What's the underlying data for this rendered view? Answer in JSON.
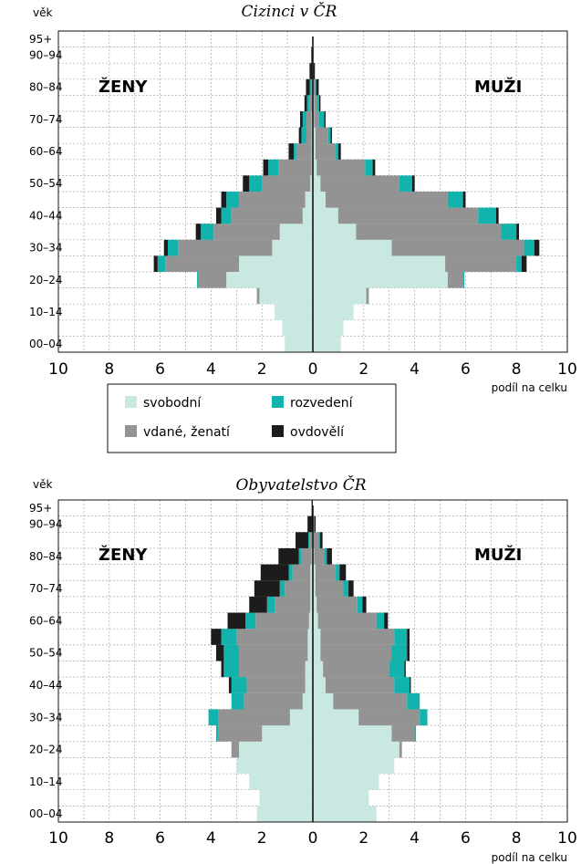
{
  "colors": {
    "svobodni": "#c9e8e2",
    "vdani": "#939393",
    "rozvedeni": "#12b3ac",
    "ovdoveli": "#1c1c1c",
    "grid": "#a6a6a6",
    "axis": "#111111"
  },
  "legend": {
    "svobodni": "svobodní",
    "vdani": "vdané, ženatí",
    "rozvedeni": "rozvedení",
    "ovdoveli": "ovdovělí"
  },
  "chart_data": [
    {
      "type": "bar",
      "orientation": "horizontal-pyramid",
      "stacked": true,
      "title": "Cizinci v ČR",
      "ylabel": "věk",
      "xlabel": "podíl na celku",
      "left_label": "ŽENY",
      "right_label": "MUŽI",
      "xlim": [
        -10,
        10
      ],
      "x_ticks": [
        "10",
        "8",
        "6",
        "4",
        "2",
        "0",
        "2",
        "4",
        "6",
        "8",
        "10"
      ],
      "y_tick_labels": [
        "00–04",
        "10–14",
        "20–24",
        "30–34",
        "40–44",
        "50–54",
        "60–64",
        "70–74",
        "80–84",
        "90–94",
        "95+"
      ],
      "grid": true,
      "categories": [
        "00–04",
        "05–09",
        "10–14",
        "15–19",
        "20–24",
        "25–29",
        "30–34",
        "35–39",
        "40–44",
        "45–49",
        "50–54",
        "55–59",
        "60–64",
        "65–69",
        "70–74",
        "75–79",
        "80–84",
        "85–89",
        "90–94",
        "95+"
      ],
      "series": [
        {
          "key": "svobodni",
          "name": "svobodní",
          "zeny": [
            1.1,
            1.2,
            1.5,
            2.1,
            3.4,
            2.9,
            1.6,
            1.3,
            0.4,
            0.3,
            0.1,
            0.05,
            0.05,
            0.05,
            0.05,
            0.03,
            0.02,
            0.01,
            0.01,
            0.0
          ],
          "muzi": [
            1.1,
            1.2,
            1.6,
            2.1,
            5.3,
            5.2,
            3.1,
            1.7,
            1.0,
            0.5,
            0.3,
            0.15,
            0.1,
            0.1,
            0.05,
            0.05,
            0.03,
            0.01,
            0.01,
            0.0
          ]
        },
        {
          "key": "vdani",
          "name": "vdané, ženatí",
          "zeny": [
            0.0,
            0.0,
            0.0,
            0.1,
            1.1,
            2.9,
            3.7,
            2.6,
            2.8,
            2.6,
            1.9,
            1.3,
            0.6,
            0.2,
            0.2,
            0.1,
            0.05,
            0.02,
            0.0,
            0.0
          ],
          "muzi": [
            0.0,
            0.0,
            0.0,
            0.1,
            0.6,
            2.8,
            5.2,
            5.7,
            5.5,
            4.8,
            3.1,
            1.9,
            0.8,
            0.5,
            0.2,
            0.1,
            0.05,
            0.02,
            0.0,
            0.0
          ],
          "zeny_total_note": "stacked outward after svobodní"
        },
        {
          "key": "rozvedeni",
          "name": "rozvedení",
          "zeny": [
            0.0,
            0.0,
            0.0,
            0.0,
            0.05,
            0.3,
            0.4,
            0.5,
            0.4,
            0.5,
            0.5,
            0.4,
            0.1,
            0.2,
            0.15,
            0.1,
            0.05,
            0.0,
            0.0,
            0.0
          ],
          "muzi": [
            0.0,
            0.0,
            0.0,
            0.0,
            0.05,
            0.2,
            0.4,
            0.6,
            0.7,
            0.6,
            0.5,
            0.3,
            0.1,
            0.1,
            0.2,
            0.1,
            0.05,
            0.0,
            0.0,
            0.0
          ]
        },
        {
          "key": "ovdoveli",
          "name": "ovdovělí",
          "zeny": [
            0.0,
            0.0,
            0.0,
            0.0,
            0.0,
            0.15,
            0.15,
            0.2,
            0.2,
            0.2,
            0.25,
            0.2,
            0.2,
            0.1,
            0.1,
            0.1,
            0.15,
            0.1,
            0.05,
            0.0
          ],
          "muzi": [
            0.0,
            0.0,
            0.0,
            0.0,
            0.0,
            0.2,
            0.2,
            0.1,
            0.1,
            0.1,
            0.1,
            0.1,
            0.1,
            0.05,
            0.05,
            0.05,
            0.1,
            0.05,
            0.0,
            0.0
          ]
        }
      ]
    },
    {
      "type": "bar",
      "orientation": "horizontal-pyramid",
      "stacked": true,
      "title": "Obyvatelstvo ČR",
      "ylabel": "věk",
      "xlabel": "podíl na celku",
      "left_label": "ŽENY",
      "right_label": "MUŽI",
      "xlim": [
        -10,
        10
      ],
      "x_ticks": [
        "10",
        "8",
        "6",
        "4",
        "2",
        "0",
        "2",
        "4",
        "6",
        "8",
        "10"
      ],
      "y_tick_labels": [
        "00–04",
        "10–14",
        "20–24",
        "30–34",
        "40–44",
        "50–54",
        "60–64",
        "70–74",
        "80–84",
        "90–94",
        "95+"
      ],
      "grid": true,
      "categories": [
        "00–04",
        "05–09",
        "10–14",
        "15–19",
        "20–24",
        "25–29",
        "30–34",
        "35–39",
        "40–44",
        "45–49",
        "50–54",
        "55–59",
        "60–64",
        "65–69",
        "70–74",
        "75–79",
        "80–84",
        "85–89",
        "90–94",
        "95+"
      ],
      "series": [
        {
          "key": "svobodni",
          "name": "svobodní",
          "zeny": [
            2.2,
            2.1,
            2.5,
            3.0,
            2.9,
            2.0,
            0.9,
            0.4,
            0.3,
            0.3,
            0.2,
            0.2,
            0.15,
            0.1,
            0.1,
            0.1,
            0.05,
            0.03,
            0.01,
            0.0
          ],
          "muzi": [
            2.5,
            2.2,
            2.6,
            3.2,
            3.4,
            3.1,
            1.8,
            0.8,
            0.5,
            0.4,
            0.3,
            0.3,
            0.2,
            0.15,
            0.1,
            0.1,
            0.05,
            0.03,
            0.01,
            0.0
          ],
          "note": "values in % of total"
        },
        {
          "key": "vdani",
          "name": "vdané, ženatí",
          "zeny": [
            0.0,
            0.0,
            0.0,
            0.0,
            0.3,
            1.7,
            2.8,
            2.3,
            2.3,
            2.6,
            2.7,
            2.8,
            2.1,
            1.4,
            1.0,
            0.7,
            0.4,
            0.1,
            0.0,
            0.0
          ],
          "muzi": [
            0.0,
            0.0,
            0.0,
            0.0,
            0.1,
            0.9,
            2.4,
            2.9,
            2.7,
            2.6,
            2.8,
            2.9,
            2.3,
            1.6,
            1.1,
            0.8,
            0.4,
            0.2,
            0.05,
            0.0
          ]
        },
        {
          "key": "rozvedeni",
          "name": "rozvedení",
          "zeny": [
            0.0,
            0.0,
            0.0,
            0.0,
            0.0,
            0.1,
            0.4,
            0.5,
            0.6,
            0.6,
            0.6,
            0.6,
            0.4,
            0.3,
            0.2,
            0.15,
            0.1,
            0.05,
            0.0,
            0.0
          ],
          "muzi": [
            0.0,
            0.0,
            0.0,
            0.0,
            0.0,
            0.05,
            0.3,
            0.5,
            0.6,
            0.6,
            0.6,
            0.5,
            0.3,
            0.2,
            0.2,
            0.15,
            0.1,
            0.05,
            0.0,
            0.0
          ]
        },
        {
          "key": "ovdoveli",
          "name": "ovdovělí",
          "zeny": [
            0.0,
            0.0,
            0.0,
            0.0,
            0.0,
            0.0,
            0.0,
            0.0,
            0.1,
            0.1,
            0.3,
            0.4,
            0.7,
            0.7,
            1.0,
            1.1,
            0.8,
            0.5,
            0.2,
            0.05
          ],
          "muzi": [
            0.0,
            0.0,
            0.0,
            0.0,
            0.0,
            0.0,
            0.0,
            0.0,
            0.05,
            0.05,
            0.1,
            0.1,
            0.15,
            0.15,
            0.2,
            0.25,
            0.2,
            0.1,
            0.05,
            0.0
          ]
        }
      ]
    }
  ]
}
